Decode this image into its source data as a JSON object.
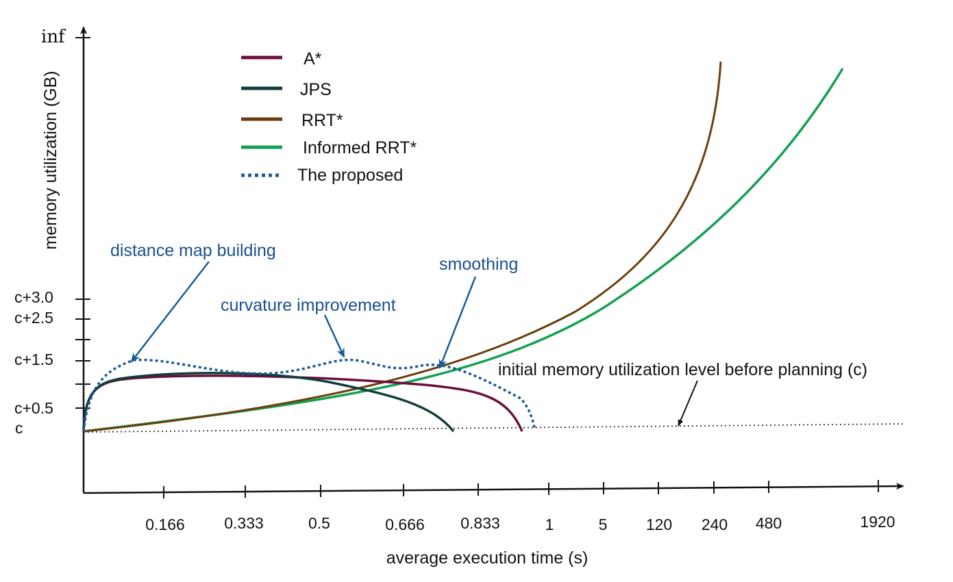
{
  "chart_data": {
    "type": "line",
    "title": "",
    "xlabel": "average execution time (s)",
    "ylabel": "memory utilization (GB)",
    "x_ticks": [
      "0.166",
      "0.333",
      "0.5",
      "0.666",
      "0.833",
      "1",
      "5",
      "120",
      "240",
      "480",
      "1920"
    ],
    "y_ticks": [
      "c",
      "c+0.5",
      "c+1.5",
      "c+2.5",
      "c+3.0",
      "inf"
    ],
    "baseline_label": "initial memory utilization level before planning (c)",
    "legend": [
      {
        "name": "A*",
        "color": "#6b0f3a",
        "style": "solid"
      },
      {
        "name": "JPS",
        "color": "#123c3c",
        "style": "solid"
      },
      {
        "name": "RRT*",
        "color": "#6b3d0c",
        "style": "solid"
      },
      {
        "name": "Informed RRT*",
        "color": "#14a050",
        "style": "solid"
      },
      {
        "name": "The proposed",
        "color": "#1a5a9a",
        "style": "dotted"
      }
    ],
    "series": [
      {
        "name": "A*",
        "end_time": 0.95,
        "peak_above_c": 1.2
      },
      {
        "name": "JPS",
        "end_time": 0.8,
        "peak_above_c": 1.3
      },
      {
        "name": "RRT*",
        "end_time": 240,
        "peak_above_c": "inf"
      },
      {
        "name": "Informed RRT*",
        "end_time": 1920,
        "peak_above_c": "inf"
      },
      {
        "name": "The proposed",
        "end_time": 0.98,
        "peak_above_c": 1.5
      }
    ],
    "annotations": [
      "distance map building",
      "curvature improvement",
      "smoothing"
    ]
  }
}
